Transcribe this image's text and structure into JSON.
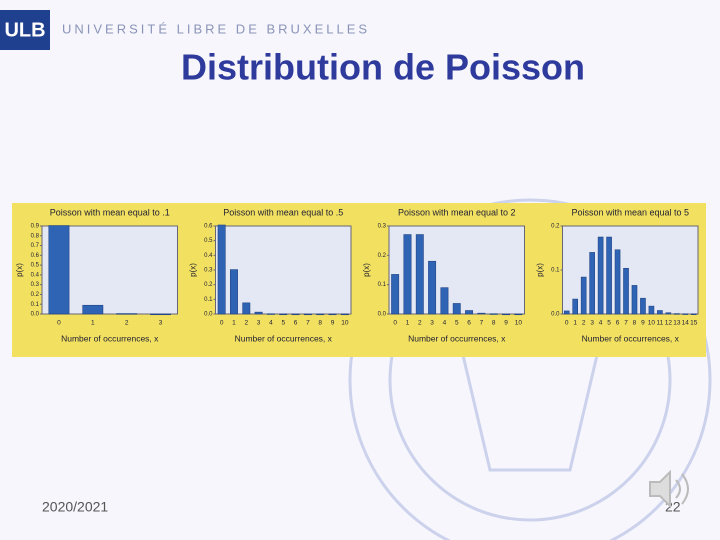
{
  "header": {
    "logo": "ULB",
    "university": "UNIVERSITÉ LIBRE DE BRUXELLES"
  },
  "title": "Distribution de Poisson",
  "footer": {
    "year": "2020/2021",
    "page": "22"
  },
  "chart_data": [
    {
      "type": "bar",
      "title": "Poisson with mean equal to .1",
      "x_label": "Number of occurrences, x",
      "y_label": "p(x)",
      "color": "#2f63b4",
      "categories": [
        "0",
        "1",
        "2",
        "3"
      ],
      "values": [
        0.905,
        0.09,
        0.005,
        0.0002
      ],
      "ylim": [
        0,
        0.9
      ],
      "yticks": [
        {
          "value": 0,
          "label": "0.0"
        },
        {
          "value": 0.1,
          "label": "0.1"
        },
        {
          "value": 0.2,
          "label": "0.2"
        },
        {
          "value": 0.3,
          "label": "0.3"
        },
        {
          "value": 0.4,
          "label": "0.4"
        },
        {
          "value": 0.5,
          "label": "0.5"
        },
        {
          "value": 0.6,
          "label": "0.6"
        },
        {
          "value": 0.7,
          "label": "0.7"
        },
        {
          "value": 0.8,
          "label": "0.8"
        },
        {
          "value": 0.9,
          "label": "0.9"
        }
      ]
    },
    {
      "type": "bar",
      "title": "Poisson with mean equal to .5",
      "x_label": "Number of occurrences, x",
      "y_label": "p(x)",
      "color": "#2f63b4",
      "categories": [
        "0",
        "1",
        "2",
        "3",
        "4",
        "5",
        "6",
        "7",
        "8",
        "9",
        "10"
      ],
      "values": [
        0.607,
        0.303,
        0.076,
        0.013,
        0.002,
        0.0002,
        0,
        0,
        0,
        0,
        0
      ],
      "ylim": [
        0,
        0.6
      ],
      "yticks": [
        {
          "value": 0,
          "label": "0.0"
        },
        {
          "value": 0.1,
          "label": "0.1"
        },
        {
          "value": 0.2,
          "label": "0.2"
        },
        {
          "value": 0.3,
          "label": "0.3"
        },
        {
          "value": 0.4,
          "label": "0.4"
        },
        {
          "value": 0.5,
          "label": "0.5"
        },
        {
          "value": 0.6,
          "label": "0.6"
        }
      ]
    },
    {
      "type": "bar",
      "title": "Poisson with mean equal to 2",
      "x_label": "Number of occurrences, x",
      "y_label": "p(x)",
      "color": "#2f63b4",
      "categories": [
        "0",
        "1",
        "2",
        "3",
        "4",
        "5",
        "6",
        "7",
        "8",
        "9",
        "10"
      ],
      "values": [
        0.135,
        0.271,
        0.271,
        0.18,
        0.09,
        0.036,
        0.012,
        0.003,
        0.001,
        0,
        0
      ],
      "ylim": [
        0,
        0.3
      ],
      "yticks": [
        {
          "value": 0,
          "label": "0.0"
        },
        {
          "value": 0.1,
          "label": "0.1"
        },
        {
          "value": 0.2,
          "label": "0.2"
        },
        {
          "value": 0.3,
          "label": "0.3"
        }
      ]
    },
    {
      "type": "bar",
      "title": "Poisson with mean equal to 5",
      "x_label": "Number of occurrences, x",
      "y_label": "p(x)",
      "color": "#2f63b4",
      "categories": [
        "0",
        "1",
        "2",
        "3",
        "4",
        "5",
        "6",
        "7",
        "8",
        "9",
        "10",
        "11",
        "12",
        "13",
        "14",
        "15"
      ],
      "values": [
        0.007,
        0.034,
        0.084,
        0.14,
        0.175,
        0.175,
        0.146,
        0.104,
        0.065,
        0.036,
        0.018,
        0.008,
        0.003,
        0.001,
        0.0005,
        0.0002
      ],
      "ylim": [
        0,
        0.2
      ],
      "yticks": [
        {
          "value": 0,
          "label": "0.0"
        },
        {
          "value": 0.1,
          "label": "0.1"
        },
        {
          "value": 0.2,
          "label": "0.2"
        }
      ]
    }
  ]
}
